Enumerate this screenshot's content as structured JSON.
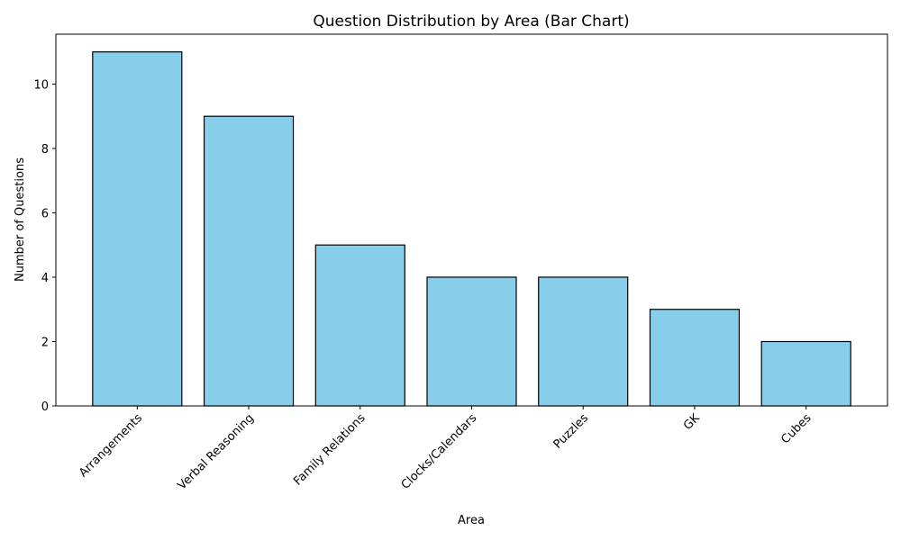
{
  "chart_data": {
    "type": "bar",
    "title": "Question Distribution by Area (Bar Chart)",
    "xlabel": "Area",
    "ylabel": "Number of Questions",
    "categories": [
      "Arrangements",
      "Verbal Reasoning",
      "Family Relations",
      "Clocks/Calendars",
      "Puzzles",
      "GK",
      "Cubes"
    ],
    "values": [
      11,
      9,
      5,
      4,
      4,
      3,
      2
    ],
    "yticks": [
      "0",
      "2",
      "4",
      "6",
      "8",
      "10"
    ],
    "ylim": [
      0,
      11.55
    ],
    "bar_color": "#87CEEB",
    "edge_color": "#000000",
    "grid": false,
    "legend": false
  }
}
